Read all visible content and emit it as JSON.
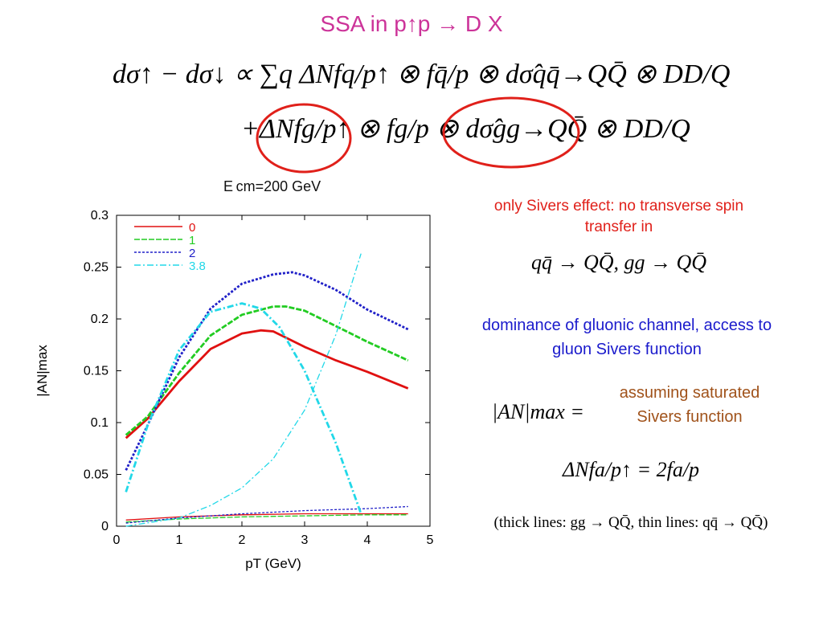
{
  "slide": {
    "title": "SSA in p↑p → D X",
    "equation_line1": "dσ↑ − dσ↓ ∝ ∑q ΔNfq/p↑ ⊗ fq̄/p ⊗ dσ̂qq̄→QQ̄ ⊗ DD/Q",
    "equation_line2": "+ΔNfg/p↑ ⊗ fg/p ⊗ dσ̂gg→QQ̄ ⊗ DD/Q",
    "ecm_label": "E cm=200 GeV",
    "note_sivers": "only Sivers effect: no transverse spin transfer in",
    "note_sivers_eq": "qq̄ → QQ̄,  gg → QQ̄",
    "note_gluon": "dominance of gluonic channel, access to gluon Sivers function",
    "an_max": "|AN|max =",
    "assuming": "assuming saturated Sivers function",
    "an_relation": "ΔNfa/p↑ = 2fa/p",
    "footnote": "(thick lines: gg → QQ̄,  thin lines: qq̄ → QQ̄)",
    "colors": {
      "title": "#cc3399",
      "circle": "#e0201a",
      "note_red": "#e0201a",
      "note_blue": "#1a1acc",
      "note_brown": "#a0521a"
    }
  },
  "chart_data": {
    "type": "line",
    "xlabel": "pT (GeV)",
    "ylabel": "|AN|max",
    "xlim": [
      0,
      5
    ],
    "ylim": [
      0,
      0.3
    ],
    "xticks": [
      0,
      1,
      2,
      3,
      4,
      5
    ],
    "yticks": [
      0,
      0.05,
      0.1,
      0.15,
      0.2,
      0.25,
      0.3
    ],
    "legend_position": "top-left",
    "series": [
      {
        "name": "0",
        "color": "#e01010",
        "style": "solid",
        "width": "thick",
        "x": [
          0.15,
          0.5,
          1.0,
          1.5,
          2.0,
          2.3,
          2.5,
          3.0,
          3.5,
          4.0,
          4.65
        ],
        "y": [
          0.085,
          0.104,
          0.14,
          0.171,
          0.186,
          0.189,
          0.188,
          0.173,
          0.16,
          0.149,
          0.133
        ]
      },
      {
        "name": "0",
        "color": "#e01010",
        "style": "solid",
        "width": "thin",
        "x": [
          0.15,
          1.0,
          2.0,
          3.0,
          4.0,
          4.65
        ],
        "y": [
          0.006,
          0.009,
          0.011,
          0.012,
          0.012,
          0.012
        ]
      },
      {
        "name": "1",
        "color": "#22cc22",
        "style": "dashed",
        "width": "thick",
        "x": [
          0.15,
          0.5,
          1.0,
          1.5,
          2.0,
          2.5,
          2.7,
          3.0,
          3.5,
          4.0,
          4.65
        ],
        "y": [
          0.088,
          0.106,
          0.148,
          0.184,
          0.204,
          0.212,
          0.212,
          0.208,
          0.193,
          0.178,
          0.16
        ]
      },
      {
        "name": "1",
        "color": "#22cc22",
        "style": "dashed",
        "width": "thin",
        "x": [
          0.15,
          1.0,
          2.0,
          3.0,
          4.0,
          4.65
        ],
        "y": [
          0.004,
          0.007,
          0.009,
          0.01,
          0.011,
          0.011
        ]
      },
      {
        "name": "2",
        "color": "#2020c8",
        "style": "dotted",
        "width": "thick",
        "x": [
          0.15,
          0.5,
          1.0,
          1.5,
          2.0,
          2.5,
          2.8,
          3.0,
          3.5,
          4.0,
          4.65
        ],
        "y": [
          0.054,
          0.098,
          0.163,
          0.21,
          0.234,
          0.243,
          0.245,
          0.242,
          0.228,
          0.209,
          0.19
        ]
      },
      {
        "name": "2",
        "color": "#2020c8",
        "style": "dotted",
        "width": "thin",
        "x": [
          0.15,
          1.0,
          2.0,
          3.0,
          4.0,
          4.65
        ],
        "y": [
          0.003,
          0.008,
          0.012,
          0.015,
          0.017,
          0.019
        ]
      },
      {
        "name": "3.8",
        "color": "#22d8e8",
        "style": "dashdot",
        "width": "thick",
        "x": [
          0.15,
          0.5,
          1.0,
          1.5,
          2.0,
          2.3,
          2.6,
          3.0,
          3.5,
          3.9
        ],
        "y": [
          0.033,
          0.098,
          0.17,
          0.207,
          0.215,
          0.21,
          0.192,
          0.15,
          0.08,
          0.012
        ]
      },
      {
        "name": "3.8",
        "color": "#22d8e8",
        "style": "dashdot",
        "width": "thin",
        "x": [
          0.15,
          1.0,
          1.5,
          2.0,
          2.5,
          3.0,
          3.5,
          3.9
        ],
        "y": [
          0.0,
          0.008,
          0.02,
          0.037,
          0.065,
          0.112,
          0.185,
          0.263
        ]
      }
    ]
  }
}
